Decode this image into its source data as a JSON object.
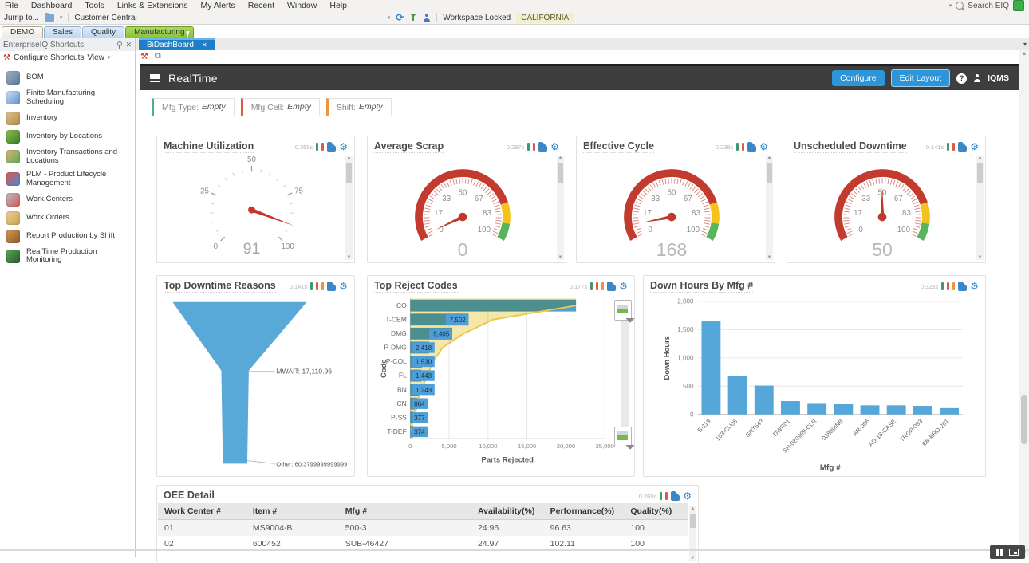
{
  "menubar": {
    "items": [
      "File",
      "Dashboard",
      "Tools",
      "Links & Extensions",
      "My Alerts",
      "Recent",
      "Window",
      "Help"
    ],
    "search_label": "Search EIQ"
  },
  "toolbar": {
    "jump_label": "Jump to...",
    "workspace_value": "Customer Central",
    "locked_label": "Workspace Locked",
    "environment": "CALIFORNIA"
  },
  "workspace_tabs": [
    {
      "label": "DEMO",
      "state": "demo"
    },
    {
      "label": "Sales",
      "state": "norm"
    },
    {
      "label": "Quality",
      "state": "norm"
    },
    {
      "label": "Manufacturing",
      "state": "active"
    }
  ],
  "sidebar": {
    "title": "EnterpriseIQ Shortcuts",
    "configure_label": "Configure Shortcuts",
    "view_label": "View",
    "items": [
      {
        "label": "BOM",
        "icon": "bom-icon",
        "colors": [
          "#9fb0c2",
          "#5a7a9c"
        ]
      },
      {
        "label": "Finite Manufacturing Scheduling",
        "icon": "calendar-icon",
        "colors": [
          "#cfe0f2",
          "#5b8fd0"
        ]
      },
      {
        "label": "Inventory",
        "icon": "box-icon",
        "colors": [
          "#e0c08a",
          "#b08850"
        ]
      },
      {
        "label": "Inventory by Locations",
        "icon": "map-box-icon",
        "colors": [
          "#8cc050",
          "#3a7a28"
        ]
      },
      {
        "label": "Inventory Transactions and Locations",
        "icon": "transfer-box-icon",
        "colors": [
          "#d8b878",
          "#58a858"
        ]
      },
      {
        "label": "PLM - Product Lifecycle Management",
        "icon": "plm-icon",
        "colors": [
          "#e05a4e",
          "#4888d8"
        ]
      },
      {
        "label": "Work Centers",
        "icon": "tools-icon",
        "colors": [
          "#b8bec8",
          "#d05a4e"
        ]
      },
      {
        "label": "Work Orders",
        "icon": "folder-icon",
        "colors": [
          "#ecd292",
          "#c8a050"
        ]
      },
      {
        "label": "Report Production by Shift",
        "icon": "worker-icon",
        "colors": [
          "#d89858",
          "#8a5828"
        ]
      },
      {
        "label": "RealTime Production Monitoring",
        "icon": "monitor-icon",
        "colors": [
          "#58a858",
          "#28582a"
        ]
      }
    ]
  },
  "document_tabs": {
    "active_label": "BiDashBoard"
  },
  "dashboard": {
    "title": "RealTime",
    "configure_button": "Configure",
    "edit_layout_button": "Edit Layout",
    "user_label": "IQMS",
    "filters": [
      {
        "label": "Mfg Type:",
        "value": "Empty",
        "accent": "#4cae8e"
      },
      {
        "label": "Mfg Cell:",
        "value": "Empty",
        "accent": "#e2574c"
      },
      {
        "label": "Shift:",
        "value": "Empty",
        "accent": "#e8973c"
      }
    ]
  },
  "widgets": {
    "machine_utilization": {
      "title": "Machine Utilization",
      "timing": "0.358s",
      "indicators": [
        "#3d9970",
        "#e2574c"
      ]
    },
    "average_scrap": {
      "title": "Average Scrap",
      "timing": "0.297s",
      "indicators": [
        "#3d9970",
        "#e2574c"
      ]
    },
    "effective_cycle": {
      "title": "Effective Cycle",
      "timing": "0.238s",
      "indicators": [
        "#3d9970",
        "#e2574c"
      ]
    },
    "unscheduled_downtime": {
      "title": "Unscheduled Downtime",
      "timing": "0.141s",
      "indicators": [
        "#3d9970",
        "#e2574c"
      ]
    },
    "top_downtime_reasons": {
      "title": "Top Downtime Reasons",
      "timing": "0.141s",
      "indicators": [
        "#3d9970",
        "#e2574c",
        "#f0943c"
      ]
    },
    "top_reject_codes": {
      "title": "Top Reject Codes",
      "timing": "0.177s",
      "indicators": [
        "#3d9970",
        "#e2574c",
        "#f0943c"
      ]
    },
    "down_hours_by_mfg": {
      "title": "Down Hours By Mfg #",
      "timing": "0.323s",
      "indicators": [
        "#3d9970",
        "#e2574c",
        "#f0943c"
      ]
    },
    "oee_detail": {
      "title": "OEE Detail",
      "timing": "0.265s",
      "indicators": [
        "#3d9970",
        "#e2574c"
      ]
    }
  },
  "chart_data": [
    {
      "id": "machine-utilization",
      "type": "gauge",
      "variant": "ticks",
      "min": 0,
      "max": 100,
      "tick_labels": [
        0,
        25,
        50,
        75,
        100
      ],
      "value": 91,
      "display_value": "91"
    },
    {
      "id": "average-scrap",
      "type": "gauge",
      "variant": "bands",
      "min": 0,
      "max": 100,
      "tick_labels": [
        0,
        17,
        33,
        50,
        67,
        83,
        100
      ],
      "value": 0,
      "needle_value": 2,
      "display_value": "0",
      "bands": [
        {
          "from": 0,
          "to": 80,
          "color": "#c23b2e"
        },
        {
          "from": 80,
          "to": 91,
          "color": "#f3c21b"
        },
        {
          "from": 91,
          "to": 100,
          "color": "#58b55c"
        }
      ]
    },
    {
      "id": "effective-cycle",
      "type": "gauge",
      "variant": "bands",
      "min": 0,
      "max": 100,
      "tick_labels": [
        0,
        17,
        33,
        50,
        67,
        83,
        100
      ],
      "value": 168,
      "needle_value": 8,
      "display_value": "168",
      "bands": [
        {
          "from": 0,
          "to": 80,
          "color": "#c23b2e"
        },
        {
          "from": 80,
          "to": 91,
          "color": "#f3c21b"
        },
        {
          "from": 91,
          "to": 100,
          "color": "#58b55c"
        }
      ]
    },
    {
      "id": "unscheduled-downtime",
      "type": "gauge",
      "variant": "bands",
      "min": 0,
      "max": 100,
      "tick_labels": [
        0,
        17,
        33,
        50,
        67,
        83,
        100
      ],
      "value": 50,
      "needle_value": 50,
      "display_value": "50",
      "bands": [
        {
          "from": 0,
          "to": 80,
          "color": "#c23b2e"
        },
        {
          "from": 80,
          "to": 91,
          "color": "#f3c21b"
        },
        {
          "from": 91,
          "to": 100,
          "color": "#58b55c"
        }
      ]
    },
    {
      "id": "top-downtime-reasons",
      "type": "funnel",
      "color": "#58a9d8",
      "items": [
        {
          "label": "MWAIT",
          "value": 17110.96,
          "callout": "MWAIT: 17,110.96"
        },
        {
          "label": "Other",
          "value": 60.3799999999999,
          "callout": "Other: 60.3799999999999"
        }
      ]
    },
    {
      "id": "top-reject-codes",
      "type": "pareto",
      "xlabel": "Parts Rejected",
      "ylabel": "Code",
      "xlim": [
        0,
        25000
      ],
      "x_ticks": [
        "0",
        "5,000",
        "10,000",
        "15,000",
        "20,000",
        "25,000"
      ],
      "categories": [
        "CO",
        "T-CEM",
        "DMG",
        "P-DMG",
        "P-COL",
        "FL",
        "BN",
        "CN",
        "P-SS",
        "T-DEF"
      ],
      "values": [
        21301,
        7502,
        5405,
        2418,
        1530,
        1443,
        1243,
        884,
        377,
        374
      ],
      "bar_labels": [
        "",
        "7,502",
        "5,405",
        "2,418",
        "1,530",
        "1,443",
        "1,243",
        "884",
        "377",
        "374"
      ],
      "bar_color": "#4f9ed6",
      "line_color": "#e9c94d"
    },
    {
      "id": "down-hours-by-mfg",
      "type": "bar",
      "xlabel": "Mfg #",
      "ylabel": "Down Hours",
      "ylim": [
        0,
        2000
      ],
      "y_ticks": [
        "0",
        "500",
        "1,000",
        "1,500",
        "2,000"
      ],
      "categories": [
        "B-119",
        "103-CU08",
        "GRT543",
        "DWR01",
        "SH-020999-CLR",
        "03880INB",
        "AR-096",
        "AD-18-CASE",
        "TROP-093",
        "BB-BRD-201"
      ],
      "values": [
        1660,
        680,
        510,
        235,
        200,
        190,
        160,
        160,
        150,
        110
      ],
      "bar_color": "#55a7da"
    },
    {
      "id": "oee-detail",
      "type": "table",
      "columns": [
        "Work Center #",
        "Item #",
        "Mfg #",
        "Availability(%)",
        "Performance(%)",
        "Quality(%)"
      ],
      "rows": [
        [
          "01",
          "MS9004-B",
          "500-3",
          "24.96",
          "96.63",
          "100"
        ],
        [
          "02",
          "600452",
          "SUB-46427",
          "24.97",
          "102.11",
          "100"
        ]
      ]
    }
  ]
}
